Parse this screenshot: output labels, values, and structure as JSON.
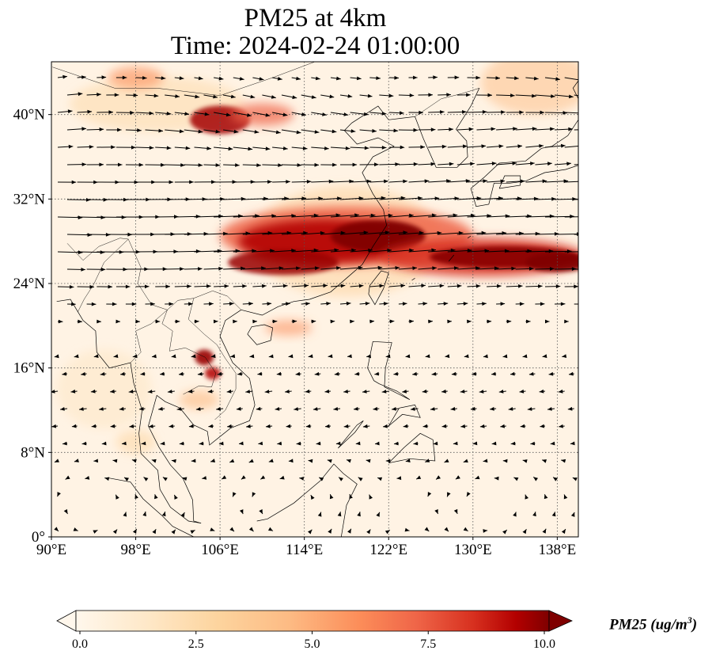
{
  "title_line1": "PM25 at 4km",
  "title_line2": "Time: 2024-02-24 01:00:00",
  "map": {
    "lon_range": [
      90,
      140
    ],
    "lat_range": [
      0,
      45
    ],
    "lon_ticks": [
      90,
      98,
      106,
      114,
      122,
      130,
      138
    ],
    "lon_tick_labels": [
      "90°E",
      "98°E",
      "106°E",
      "114°E",
      "122°E",
      "130°E",
      "138°E"
    ],
    "lat_ticks": [
      0,
      8,
      16,
      24,
      32,
      40
    ],
    "lat_tick_labels": [
      "0°",
      "8°N",
      "16°N",
      "24°N",
      "32°N",
      "40°N"
    ],
    "gridlines": "dotted",
    "overlay": "wind vectors (arrows)"
  },
  "colorbar": {
    "label": "PM25 (ug/m3)",
    "label_text": "PM25 (ug/m",
    "label_sup": "3",
    "label_close": ")",
    "cmap": "OrRd",
    "vmin": 0,
    "vmax": 10,
    "ticks": [
      0,
      2.5,
      5,
      7.5,
      10
    ],
    "tick_labels": [
      "0.0",
      "2.5",
      "5.0",
      "7.5",
      "10.0"
    ],
    "extend": "both"
  }
}
